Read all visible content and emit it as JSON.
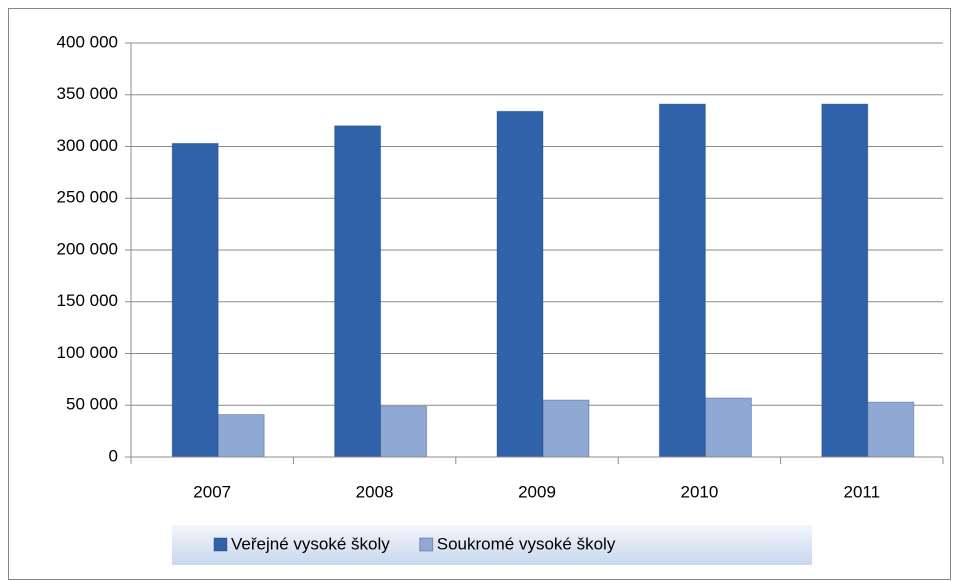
{
  "chart_data": {
    "type": "bar",
    "categories": [
      "2007",
      "2008",
      "2009",
      "2010",
      "2011"
    ],
    "series": [
      {
        "name": "Veřejné vysoké školy",
        "color": "#2f62a8",
        "values": [
          303000,
          320000,
          334000,
          341000,
          341000
        ]
      },
      {
        "name": "Soukromé vysoké školy",
        "color": "#8fa8d4",
        "values": [
          41000,
          49000,
          55000,
          57000,
          53000
        ]
      }
    ],
    "ylim": [
      0,
      400000
    ],
    "yticks": [
      0,
      {
        "value": 50000,
        "label": "50 000"
      },
      {
        "value": 100000,
        "label": "100 000"
      },
      {
        "value": 150000,
        "label": "150 000"
      },
      {
        "value": 200000,
        "label": "200 000"
      },
      {
        "value": 250000,
        "label": "250 000"
      },
      {
        "value": 300000,
        "label": "300 000"
      },
      {
        "value": 350000,
        "label": "350 000"
      },
      {
        "value": 400000,
        "label": "400 000"
      }
    ],
    "grid": true,
    "legend": "bottom"
  }
}
